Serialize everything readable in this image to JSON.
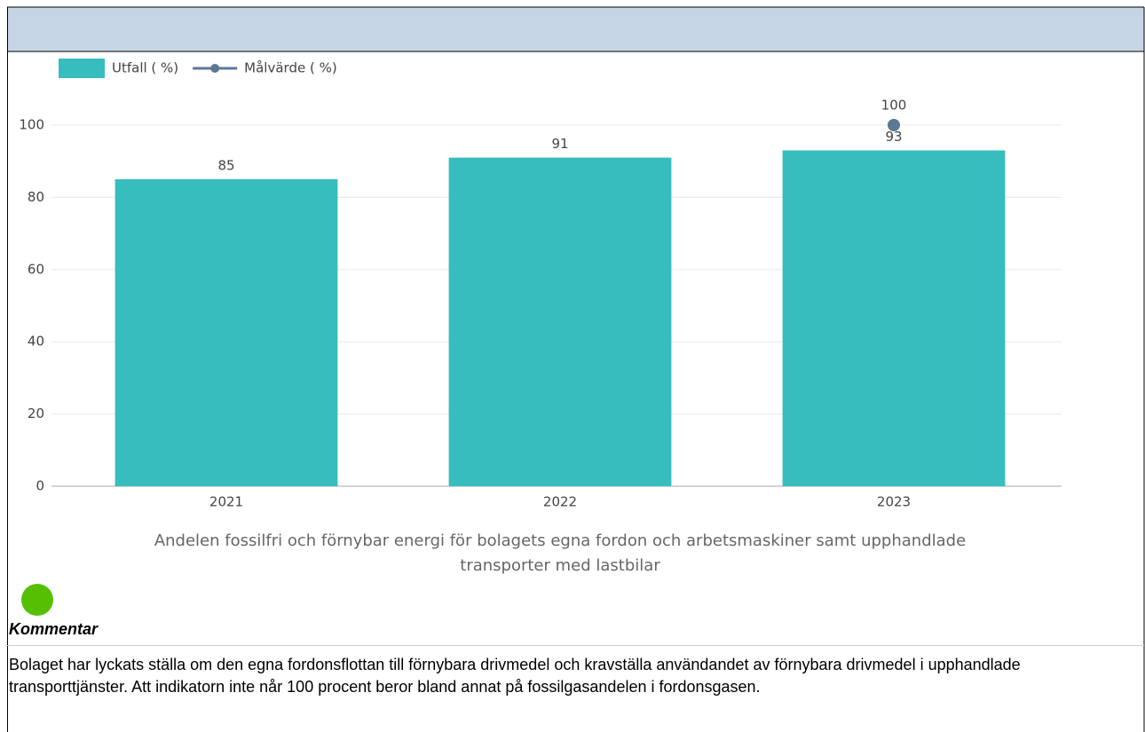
{
  "chart_data": {
    "type": "bar",
    "title": "Andelen fossilfri och förnybar energi för bolagets egna fordon och arbetsmaskiner samt upphandlade transporter med lastbilar",
    "categories": [
      "2021",
      "2022",
      "2023"
    ],
    "series": [
      {
        "name": "Utfall ( %)",
        "type": "bar",
        "color": "#37bdbd",
        "values": [
          85,
          91,
          93
        ]
      },
      {
        "name": "Målvärde ( %)",
        "type": "line",
        "color": "#5b7896",
        "values": [
          null,
          null,
          100
        ]
      }
    ],
    "ylim": [
      0,
      100
    ],
    "yticks": [
      0,
      20,
      40,
      60,
      80,
      100
    ],
    "grid": true,
    "legend": "top-left"
  },
  "status": {
    "color": "#55c000"
  },
  "comment": {
    "heading": "Kommentar",
    "text": "Bolaget har lyckats ställa om den egna fordonsflottan till förnybara drivmedel och kravställa användandet av förnybara drivmedel i upphandlade transporttjänster. Att indikatorn inte når 100 procent beror bland annat på fossilgasandelen i fordonsgasen."
  }
}
